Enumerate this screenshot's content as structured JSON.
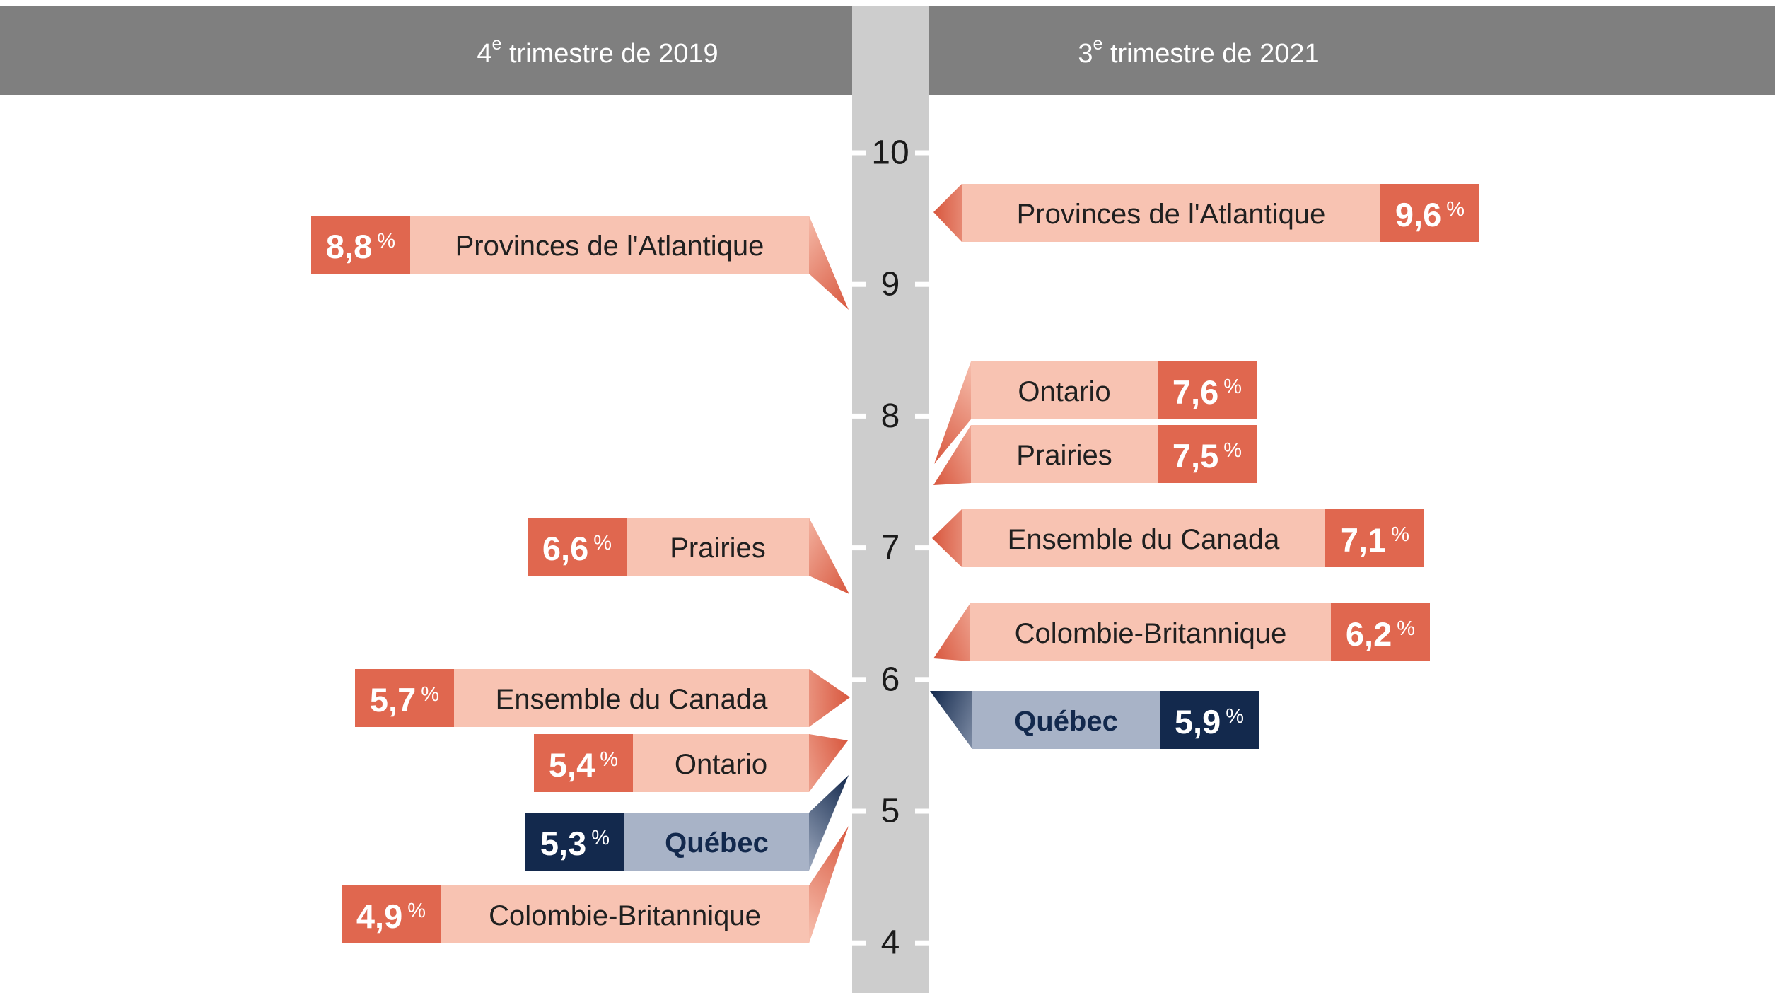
{
  "page": {
    "background": "#ffffff"
  },
  "colors": {
    "header_gray": "#7f7f7f",
    "axis_gray": "#cdcdcd",
    "pink_body": "#f8c3b2",
    "red_accent": "#e0674f",
    "red_deep": "#d8573e",
    "steel_body": "#a8b3c7",
    "navy": "#13294d",
    "label_dark": "#202020",
    "tick_dark": "#1a1a1a",
    "white": "#ffffff"
  },
  "chart_data": {
    "type": "bar",
    "variant": "mirrored horizontal arrow bars pointing to a shared central vertical scale",
    "unit": "%",
    "grid": false,
    "legend": null,
    "value_axis": {
      "min": 4,
      "max": 10,
      "tick_labels": [
        "10",
        "9",
        "8",
        "7",
        "6",
        "5",
        "4"
      ]
    },
    "panels": [
      {
        "side": "left",
        "title": "4e trimestre de 2019",
        "title_parts": {
          "num": "4",
          "sup": "e",
          "rest": " trimestre de 2019"
        },
        "items": [
          {
            "label": "Provinces de l'Atlantique",
            "value": 8.8,
            "value_display": "8,8",
            "highlight": false
          },
          {
            "label": "Prairies",
            "value": 6.6,
            "value_display": "6,6",
            "highlight": false
          },
          {
            "label": "Ensemble du Canada",
            "value": 5.7,
            "value_display": "5,7",
            "highlight": false
          },
          {
            "label": "Ontario",
            "value": 5.4,
            "value_display": "5,4",
            "highlight": false
          },
          {
            "label": "Québec",
            "value": 5.3,
            "value_display": "5,3",
            "highlight": true
          },
          {
            "label": "Colombie-Britannique",
            "value": 4.9,
            "value_display": "4,9",
            "highlight": false
          }
        ]
      },
      {
        "side": "right",
        "title": "3e trimestre de 2021",
        "title_parts": {
          "num": "3",
          "sup": "e",
          "rest": " trimestre de 2021"
        },
        "items": [
          {
            "label": "Provinces de l'Atlantique",
            "value": 9.6,
            "value_display": "9,6",
            "highlight": false
          },
          {
            "label": "Ontario",
            "value": 7.6,
            "value_display": "7,6",
            "highlight": false
          },
          {
            "label": "Prairies",
            "value": 7.5,
            "value_display": "7,5",
            "highlight": false
          },
          {
            "label": "Ensemble du Canada",
            "value": 7.1,
            "value_display": "7,1",
            "highlight": false
          },
          {
            "label": "Colombie-Britannique",
            "value": 6.2,
            "value_display": "6,2",
            "highlight": false
          },
          {
            "label": "Québec",
            "value": 5.9,
            "value_display": "5,9",
            "highlight": true
          }
        ]
      }
    ]
  }
}
